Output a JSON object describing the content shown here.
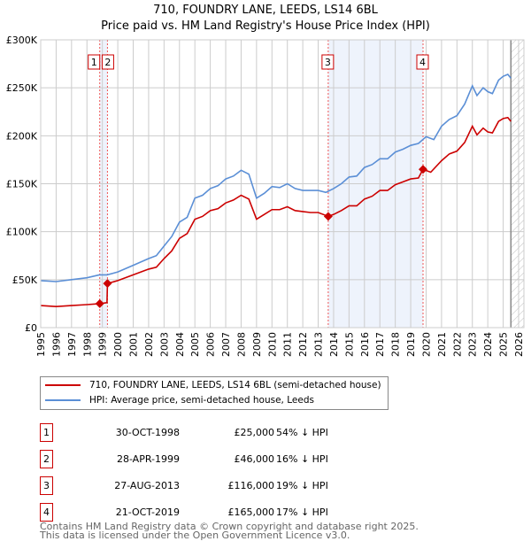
{
  "chart_data": {
    "type": "line",
    "title": "710, FOUNDRY LANE, LEEDS, LS14 6BL",
    "subtitle": "Price paid vs. HM Land Registry's House Price Index (HPI)",
    "xlim": [
      1995,
      2026
    ],
    "ylim": [
      0,
      300000
    ],
    "y_ticks": [
      {
        "v": 0,
        "label": "£0"
      },
      {
        "v": 50000,
        "label": "£50K"
      },
      {
        "v": 100000,
        "label": "£100K"
      },
      {
        "v": 150000,
        "label": "£150K"
      },
      {
        "v": 200000,
        "label": "£200K"
      },
      {
        "v": 250000,
        "label": "£250K"
      },
      {
        "v": 300000,
        "label": "£300K"
      }
    ],
    "x_ticks": [
      "1995",
      "1996",
      "1997",
      "1998",
      "1999",
      "2000",
      "2001",
      "2002",
      "2003",
      "2004",
      "2005",
      "2006",
      "2007",
      "2008",
      "2009",
      "2010",
      "2011",
      "2012",
      "2013",
      "2014",
      "2015",
      "2016",
      "2017",
      "2018",
      "2019",
      "2020",
      "2021",
      "2022",
      "2023",
      "2024",
      "2025",
      "2026"
    ],
    "grid": true,
    "series": [
      {
        "name": "710, FOUNDRY LANE, LEEDS, LS14 6BL (semi-detached house)",
        "color": "#cc0000",
        "x": [
          1995,
          1996,
          1997,
          1998,
          1998.83,
          1999.3,
          1999.33,
          2000,
          2001,
          2002,
          2002.5,
          2003,
          2003.5,
          2004,
          2004.5,
          2005,
          2005.5,
          2006,
          2006.5,
          2007,
          2007.5,
          2008,
          2008.5,
          2009,
          2009.5,
          2010,
          2010.5,
          2011,
          2011.5,
          2012,
          2012.5,
          2013,
          2013.65,
          2014,
          2014.5,
          2015,
          2015.5,
          2016,
          2016.5,
          2017,
          2017.5,
          2018,
          2018.5,
          2019,
          2019.5,
          2019.8,
          2020.3,
          2021,
          2021.5,
          2022,
          2022.5,
          2023,
          2023.3,
          2023.7,
          2024,
          2024.3,
          2024.7,
          2025,
          2025.3,
          2025.5
        ],
        "y": [
          23,
          22,
          23,
          24,
          25,
          26,
          46,
          49,
          55,
          61,
          63,
          72,
          80,
          93,
          98,
          113,
          116,
          122,
          124,
          130,
          133,
          138,
          134,
          113,
          118,
          123,
          123,
          126,
          122,
          121,
          120,
          120,
          116,
          118,
          122,
          127,
          127,
          134,
          137,
          143,
          143,
          149,
          152,
          155,
          156,
          165,
          162,
          174,
          181,
          184,
          193,
          210,
          201,
          208,
          204,
          203,
          215,
          218,
          219,
          215
        ]
      },
      {
        "name": "HPI: Average price, semi-detached house, Leeds",
        "color": "#5b8fd6",
        "x": [
          1995,
          1996,
          1997,
          1998,
          1998.8,
          1999.3,
          2000,
          2001,
          2002,
          2002.5,
          2003,
          2003.5,
          2004,
          2004.5,
          2005,
          2005.5,
          2006,
          2006.5,
          2007,
          2007.5,
          2008,
          2008.5,
          2009,
          2009.5,
          2010,
          2010.5,
          2011,
          2011.5,
          2012,
          2012.5,
          2013,
          2013.5,
          2014,
          2014.5,
          2015,
          2015.5,
          2016,
          2016.5,
          2017,
          2017.5,
          2018,
          2018.5,
          2019,
          2019.5,
          2020,
          2020.5,
          2021,
          2021.5,
          2022,
          2022.5,
          2023,
          2023.3,
          2023.7,
          2024,
          2024.3,
          2024.7,
          2025,
          2025.3,
          2025.5
        ],
        "y": [
          49,
          48,
          50,
          52,
          55,
          55,
          58,
          65,
          72,
          75,
          85,
          95,
          110,
          115,
          135,
          138,
          145,
          148,
          155,
          158,
          164,
          160,
          135,
          140,
          147,
          146,
          150,
          145,
          143,
          143,
          143,
          141,
          145,
          150,
          157,
          158,
          167,
          170,
          176,
          176,
          183,
          186,
          190,
          192,
          199,
          196,
          210,
          217,
          221,
          233,
          252,
          242,
          250,
          246,
          244,
          258,
          262,
          264,
          260
        ]
      }
    ],
    "y_unit": "thousands GBP",
    "sales": [
      {
        "n": "1",
        "x": 1998.83,
        "date": "30-OCT-1998",
        "price": "£25,000",
        "value": 25,
        "hpi": "54% ↓ HPI"
      },
      {
        "n": "2",
        "x": 1999.33,
        "date": "28-APR-1999",
        "price": "£46,000",
        "value": 46,
        "hpi": "16% ↓ HPI"
      },
      {
        "n": "3",
        "x": 2013.65,
        "date": "27-AUG-2013",
        "price": "£116,000",
        "value": 116,
        "hpi": "19% ↓ HPI"
      },
      {
        "n": "4",
        "x": 2019.8,
        "date": "21-OCT-2019",
        "price": "£165,000",
        "value": 165,
        "hpi": "17% ↓ HPI"
      }
    ],
    "legend_position": "below"
  },
  "footer": {
    "line1": "Contains HM Land Registry data © Crown copyright and database right 2025.",
    "line2": "This data is licensed under the Open Government Licence v3.0."
  }
}
